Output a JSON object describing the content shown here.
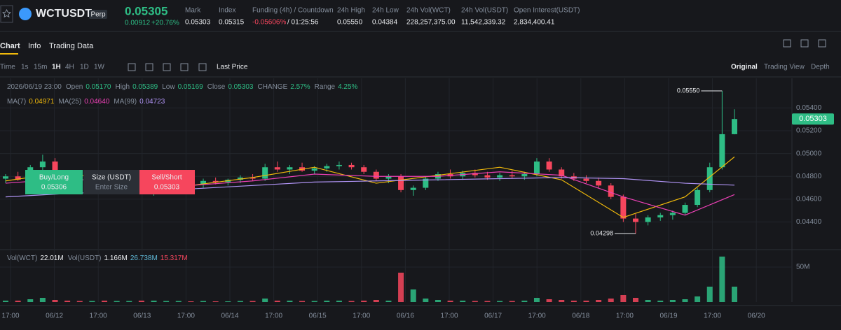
{
  "header": {
    "symbol": "WCTUSDT",
    "badge": "Perp",
    "price": "0.05305",
    "change": "0.00912",
    "change_pct": "+20.76%",
    "stats": [
      {
        "label": "Mark",
        "value": "0.05303"
      },
      {
        "label": "Index",
        "value": "0.05315"
      },
      {
        "label": "Funding (4h) / Countdown",
        "value": "-0.05606%",
        "extra": "/ 01:25:56"
      },
      {
        "label": "24h High",
        "value": "0.05550"
      },
      {
        "label": "24h Low",
        "value": "0.04384"
      },
      {
        "label": "24h Vol(WCT)",
        "value": "228,257,375.00"
      },
      {
        "label": "24h Vol(USDT)",
        "value": "11,542,339.32"
      },
      {
        "label": "Open Interest(USDT)",
        "value": "2,834,400.41"
      }
    ]
  },
  "tabs": [
    "Chart",
    "Info",
    "Trading Data"
  ],
  "toolbar": {
    "intervals": [
      "Time",
      "1s",
      "15m",
      "1H",
      "4H",
      "1D",
      "1W"
    ],
    "price_type": "Last Price",
    "views": [
      "Original",
      "Trading View",
      "Depth"
    ]
  },
  "info": {
    "date": "2026/06/19 23:00",
    "ohlc": [
      {
        "label": "Open",
        "value": "0.05170"
      },
      {
        "label": "High",
        "value": "0.05389"
      },
      {
        "label": "Low",
        "value": "0.05169"
      },
      {
        "label": "Close",
        "value": "0.05303"
      },
      {
        "label": "CHANGE",
        "value": "2.57%"
      },
      {
        "label": "Range",
        "value": "4.25%"
      }
    ],
    "ma": [
      {
        "label": "MA(7)",
        "value": "0.04971"
      },
      {
        "label": "MA(25)",
        "value": "0.04640"
      },
      {
        "label": "MA(99)",
        "value": "0.04723"
      }
    ],
    "vol": [
      {
        "label": "Vol(WCT)",
        "value": "22.01M",
        "color": "#eaecef"
      },
      {
        "label": "Vol(USDT)",
        "value": "1.166M",
        "color": "#eaecef"
      },
      {
        "value": "26.738M",
        "color": "#5fb8d6"
      },
      {
        "value": "15.317M",
        "color": "#f6465d"
      }
    ]
  },
  "order": {
    "buy_label": "Buy/Long",
    "buy_price": "0.05306",
    "size_label": "Size (USDT)",
    "size_placeholder": "Enter Size",
    "sell_label": "Sell/Short",
    "sell_price": "0.05303"
  },
  "chart_data": {
    "type": "candlestick",
    "up_color": "#2ebd85",
    "down_color": "#f6465d",
    "candles": [
      [
        0.0478,
        0.0482,
        0.0474,
        0.048
      ],
      [
        0.048,
        0.0484,
        0.0476,
        0.0477
      ],
      [
        0.0477,
        0.049,
        0.0475,
        0.0488
      ],
      [
        0.0488,
        0.0499,
        0.0484,
        0.0493
      ],
      [
        0.0493,
        0.0496,
        0.048,
        0.0482
      ],
      [
        0.0482,
        0.0485,
        0.0476,
        0.0478
      ],
      [
        0.0478,
        0.0481,
        0.0472,
        0.0474
      ],
      [
        0.0474,
        0.0479,
        0.047,
        0.0476
      ],
      [
        0.0476,
        0.0478,
        0.0468,
        0.047
      ],
      [
        0.047,
        0.0474,
        0.0466,
        0.0472
      ],
      [
        0.0472,
        0.0476,
        0.0469,
        0.0473
      ],
      [
        0.0473,
        0.0475,
        0.0466,
        0.0468
      ],
      [
        0.0468,
        0.0472,
        0.0463,
        0.047
      ],
      [
        0.047,
        0.0474,
        0.0465,
        0.0471
      ],
      [
        0.0471,
        0.0476,
        0.0469,
        0.0474
      ],
      [
        0.0474,
        0.0477,
        0.0471,
        0.0473
      ],
      [
        0.0473,
        0.0478,
        0.047,
        0.0476
      ],
      [
        0.0476,
        0.0479,
        0.0473,
        0.0475
      ],
      [
        0.0475,
        0.0478,
        0.0472,
        0.0477
      ],
      [
        0.0477,
        0.0481,
        0.0474,
        0.0479
      ],
      [
        0.0479,
        0.0482,
        0.0476,
        0.0478
      ],
      [
        0.0478,
        0.0491,
        0.0476,
        0.0488
      ],
      [
        0.0488,
        0.0493,
        0.0484,
        0.0486
      ],
      [
        0.0486,
        0.049,
        0.0482,
        0.0488
      ],
      [
        0.0488,
        0.0492,
        0.0484,
        0.0485
      ],
      [
        0.0485,
        0.0489,
        0.0482,
        0.0487
      ],
      [
        0.0487,
        0.0491,
        0.0484,
        0.0489
      ],
      [
        0.0489,
        0.0493,
        0.0486,
        0.049
      ],
      [
        0.049,
        0.0492,
        0.0486,
        0.0488
      ],
      [
        0.0488,
        0.049,
        0.0482,
        0.0484
      ],
      [
        0.0484,
        0.0486,
        0.0476,
        0.0478
      ],
      [
        0.0478,
        0.0482,
        0.0474,
        0.048
      ],
      [
        0.048,
        0.0482,
        0.0466,
        0.0468
      ],
      [
        0.0468,
        0.0472,
        0.0463,
        0.047
      ],
      [
        0.047,
        0.048,
        0.0468,
        0.0478
      ],
      [
        0.0478,
        0.0484,
        0.0476,
        0.0482
      ],
      [
        0.0482,
        0.0486,
        0.0478,
        0.048
      ],
      [
        0.048,
        0.0485,
        0.0477,
        0.0483
      ],
      [
        0.0483,
        0.0486,
        0.0479,
        0.0481
      ],
      [
        0.0481,
        0.0484,
        0.0477,
        0.0479
      ],
      [
        0.0479,
        0.0483,
        0.0476,
        0.0481
      ],
      [
        0.0481,
        0.0485,
        0.0478,
        0.048
      ],
      [
        0.048,
        0.0484,
        0.0477,
        0.0482
      ],
      [
        0.0482,
        0.0496,
        0.048,
        0.0493
      ],
      [
        0.0493,
        0.0496,
        0.0484,
        0.0486
      ],
      [
        0.0486,
        0.0488,
        0.0478,
        0.048
      ],
      [
        0.048,
        0.0483,
        0.0476,
        0.0478
      ],
      [
        0.0478,
        0.0481,
        0.0474,
        0.0476
      ],
      [
        0.0476,
        0.0479,
        0.047,
        0.0472
      ],
      [
        0.0472,
        0.0474,
        0.046,
        0.0462
      ],
      [
        0.0462,
        0.0464,
        0.044,
        0.0443
      ],
      [
        0.0443,
        0.0447,
        0.04298,
        0.044
      ],
      [
        0.044,
        0.0446,
        0.0437,
        0.0444
      ],
      [
        0.0444,
        0.0448,
        0.0441,
        0.0446
      ],
      [
        0.0446,
        0.045,
        0.0442,
        0.0448
      ],
      [
        0.0448,
        0.0457,
        0.0446,
        0.0455
      ],
      [
        0.0455,
        0.047,
        0.0453,
        0.0468
      ],
      [
        0.0468,
        0.0492,
        0.0466,
        0.0488
      ],
      [
        0.0488,
        0.0555,
        0.0486,
        0.0517
      ],
      [
        0.0517,
        0.05389,
        0.05169,
        0.05303
      ]
    ],
    "volumes": [
      2,
      2,
      4,
      6,
      3,
      2,
      1.5,
      1.5,
      2,
      1.5,
      1.5,
      2,
      2,
      1.5,
      1.5,
      1,
      1.5,
      1,
      1,
      1.5,
      1.5,
      5,
      2,
      2,
      1.5,
      1.5,
      2,
      2,
      1.5,
      2,
      3,
      2,
      42,
      18,
      5,
      3,
      2,
      2,
      1.5,
      1.5,
      1.5,
      1.5,
      2,
      6,
      4,
      3,
      2,
      2,
      3,
      5,
      10,
      6,
      3,
      2,
      3,
      4,
      8,
      22,
      65,
      22.01
    ],
    "ma_lines": [
      {
        "color": "#f0b90b",
        "x": [
          0,
          5,
          10,
          15,
          20,
          25,
          30,
          35,
          40,
          45,
          50,
          55,
          59
        ],
        "values": [
          0.0476,
          0.0484,
          0.0471,
          0.0472,
          0.0479,
          0.0488,
          0.0474,
          0.0481,
          0.0488,
          0.0477,
          0.0444,
          0.0462,
          0.04971
        ]
      },
      {
        "color": "#eb40b5",
        "x": [
          0,
          5,
          10,
          15,
          20,
          25,
          30,
          35,
          40,
          45,
          50,
          55,
          59
        ],
        "values": [
          0.0474,
          0.0478,
          0.0474,
          0.0472,
          0.0476,
          0.0482,
          0.048,
          0.048,
          0.0484,
          0.0481,
          0.0462,
          0.0446,
          0.0464
        ]
      },
      {
        "color": "#b094f5",
        "x": [
          0,
          5,
          10,
          15,
          20,
          25,
          30,
          35,
          40,
          45,
          50,
          55,
          59
        ],
        "values": [
          0.0462,
          0.0465,
          0.0467,
          0.0469,
          0.0472,
          0.0475,
          0.0476,
          0.0477,
          0.0478,
          0.0479,
          0.0478,
          0.0474,
          0.04723
        ]
      }
    ],
    "ylim": [
      0.0417,
      0.0566
    ],
    "yticks": [
      {
        "value": 0.044,
        "label": "0.04400"
      },
      {
        "value": 0.046,
        "label": "0.04600"
      },
      {
        "value": 0.048,
        "label": "0.04800"
      },
      {
        "value": 0.05,
        "label": "0.05000"
      },
      {
        "value": 0.052,
        "label": "0.05200"
      },
      {
        "value": 0.054,
        "label": "0.05400"
      }
    ],
    "vol_lim": [
      0,
      72
    ],
    "vol_ticks": [
      {
        "value": 50,
        "label": "50M"
      }
    ],
    "high_marker": {
      "value": 0.0555,
      "label": "0.05550"
    },
    "low_marker": {
      "value": 0.04298,
      "label": "0.04298"
    },
    "last_price": {
      "value": 0.05303,
      "label": "0.05303"
    },
    "time_axis": [
      "17:00",
      "06/12",
      "17:00",
      "06/13",
      "17:00",
      "06/14",
      "17:00",
      "06/15",
      "17:00",
      "06/16",
      "17:00",
      "06/17",
      "17:00",
      "06/18",
      "17:00",
      "06/19",
      "17:00",
      "06/20"
    ],
    "grid": true
  }
}
